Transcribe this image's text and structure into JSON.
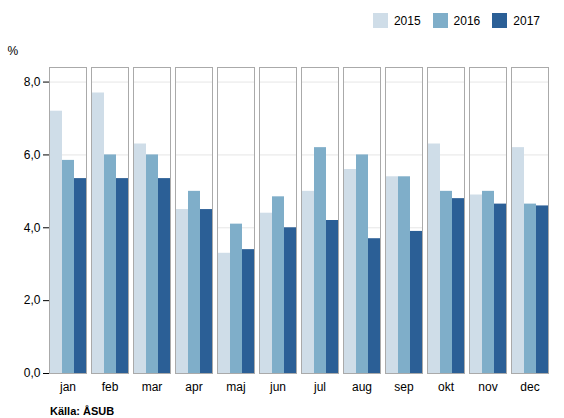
{
  "chart_data": {
    "type": "bar",
    "categories": [
      "jan",
      "feb",
      "mar",
      "apr",
      "maj",
      "jun",
      "jul",
      "aug",
      "sep",
      "okt",
      "nov",
      "dec"
    ],
    "series": [
      {
        "name": "2015",
        "color": "#cfdde8",
        "values": [
          7.2,
          7.7,
          6.3,
          4.5,
          3.3,
          4.4,
          5.0,
          5.6,
          5.4,
          6.3,
          4.9,
          6.2
        ]
      },
      {
        "name": "2016",
        "color": "#7faec9",
        "values": [
          5.85,
          6.0,
          6.0,
          5.0,
          4.1,
          4.85,
          6.2,
          6.0,
          5.4,
          5.0,
          5.0,
          4.65
        ]
      },
      {
        "name": "2017",
        "color": "#2b5f96",
        "values": [
          5.35,
          5.35,
          5.35,
          4.5,
          3.4,
          4.0,
          4.2,
          3.7,
          3.9,
          4.8,
          4.65,
          4.6
        ]
      }
    ],
    "ylabel": "%",
    "ylim": [
      0,
      8.4
    ],
    "yticks": [
      {
        "value": 0.0,
        "label": "0,0"
      },
      {
        "value": 2.0,
        "label": "2,0"
      },
      {
        "value": 4.0,
        "label": "4,0"
      },
      {
        "value": 6.0,
        "label": "6,0"
      },
      {
        "value": 8.0,
        "label": "8,0"
      }
    ],
    "grid": true,
    "legend": "upper right",
    "source": "Källa: ÅSUB"
  }
}
